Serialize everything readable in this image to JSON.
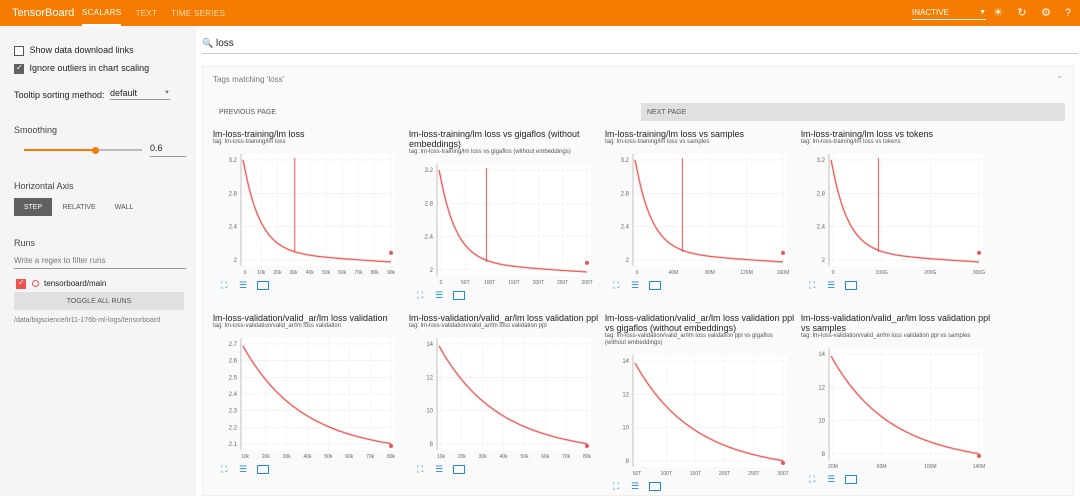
{
  "header": {
    "brand": "TensorBoard",
    "tabs": [
      "SCALARS",
      "TEXT",
      "TIME SERIES"
    ],
    "status_select": "INACTIVE",
    "accent_color": "#f57c00"
  },
  "sidebar": {
    "show_download_links": "Show data download links",
    "ignore_outliers": "Ignore outliers in chart scaling",
    "tooltip_label": "Tooltip sorting method:",
    "tooltip_value": "default",
    "smoothing_label": "Smoothing",
    "smoothing_value": "0.6",
    "horizontal_axis_label": "Horizontal Axis",
    "axis_buttons": [
      "STEP",
      "RELATIVE",
      "WALL"
    ],
    "runs_label": "Runs",
    "runs_filter_placeholder": "Write a regex to filter runs",
    "run_name": "tensorboard/main",
    "toggle_all": "TOGGLE ALL RUNS",
    "run_path": "/data/bigscience/tr11-176b-ml-logs/tensorboard",
    "run_color": "#ef5350"
  },
  "main": {
    "search_query": "loss",
    "tags_matching_label": "Tags matching",
    "tags_matching_value": "'loss'",
    "previous_page": "PREVIOUS PAGE",
    "next_page": "NEXT PAGE",
    "series_color": "#ef5350",
    "cards": [
      {
        "title": "lm-loss-training/lm loss",
        "tag": "tag: lm-loss-training/lm loss",
        "yticks": [
          "3.2",
          "2.8",
          "2.4",
          "2"
        ],
        "xticks": [
          "0",
          "10k",
          "20k",
          "30k",
          "40k",
          "50k",
          "60k",
          "70k",
          "80k",
          "90k"
        ]
      },
      {
        "title": "lm-loss-training/lm loss vs gigaflos (without embeddings)",
        "tag": "tag: lm-loss-training/lm loss vs gigaflos (without embeddings)",
        "yticks": [
          "3.2",
          "2.8",
          "2.4",
          "2"
        ],
        "xticks": [
          "0",
          "50T",
          "100T",
          "150T",
          "200T",
          "250T",
          "300T"
        ]
      },
      {
        "title": "lm-loss-training/lm loss vs samples",
        "tag": "tag: lm-loss-training/lm loss vs samples",
        "yticks": [
          "3.2",
          "2.8",
          "2.4",
          "2"
        ],
        "xticks": [
          "0",
          "40M",
          "80M",
          "120M",
          "160M"
        ]
      },
      {
        "title": "lm-loss-training/lm loss vs tokens",
        "tag": "tag: lm-loss-training/lm loss vs tokens",
        "yticks": [
          "3.2",
          "2.8",
          "2.4",
          "2"
        ],
        "xticks": [
          "0",
          "100G",
          "200G",
          "300G"
        ]
      },
      {
        "title": "lm-loss-validation/valid_ar/lm loss validation",
        "tag": "tag: lm-loss-validation/valid_ar/lm loss validation",
        "yticks": [
          "2.7",
          "2.6",
          "2.5",
          "2.4",
          "2.3",
          "2.2",
          "2.1"
        ],
        "xticks": [
          "10k",
          "20k",
          "30k",
          "40k",
          "50k",
          "60k",
          "70k",
          "80k"
        ]
      },
      {
        "title": "lm-loss-validation/valid_ar/lm loss validation ppl",
        "tag": "tag: lm-loss-validation/valid_ar/lm loss validation ppl",
        "yticks": [
          "14",
          "12",
          "10",
          "8"
        ],
        "xticks": [
          "10k",
          "20k",
          "30k",
          "40k",
          "50k",
          "60k",
          "70k",
          "80k"
        ]
      },
      {
        "title": "lm-loss-validation/valid_ar/lm loss validation ppl vs gigaflos (without embeddings)",
        "tag": "tag: lm-loss-validation/valid_ar/lm loss validation ppl vs gigaflos (without embeddings)",
        "yticks": [
          "14",
          "12",
          "10",
          "8"
        ],
        "xticks": [
          "50T",
          "100T",
          "150T",
          "200T",
          "250T",
          "300T"
        ]
      },
      {
        "title": "lm-loss-validation/valid_ar/lm loss validation ppl vs samples",
        "tag": "tag: lm-loss-validation/valid_ar/lm loss validation ppl vs samples",
        "yticks": [
          "14",
          "12",
          "10",
          "8"
        ],
        "xticks": [
          "20M",
          "60M",
          "100M",
          "140M"
        ]
      }
    ]
  }
}
